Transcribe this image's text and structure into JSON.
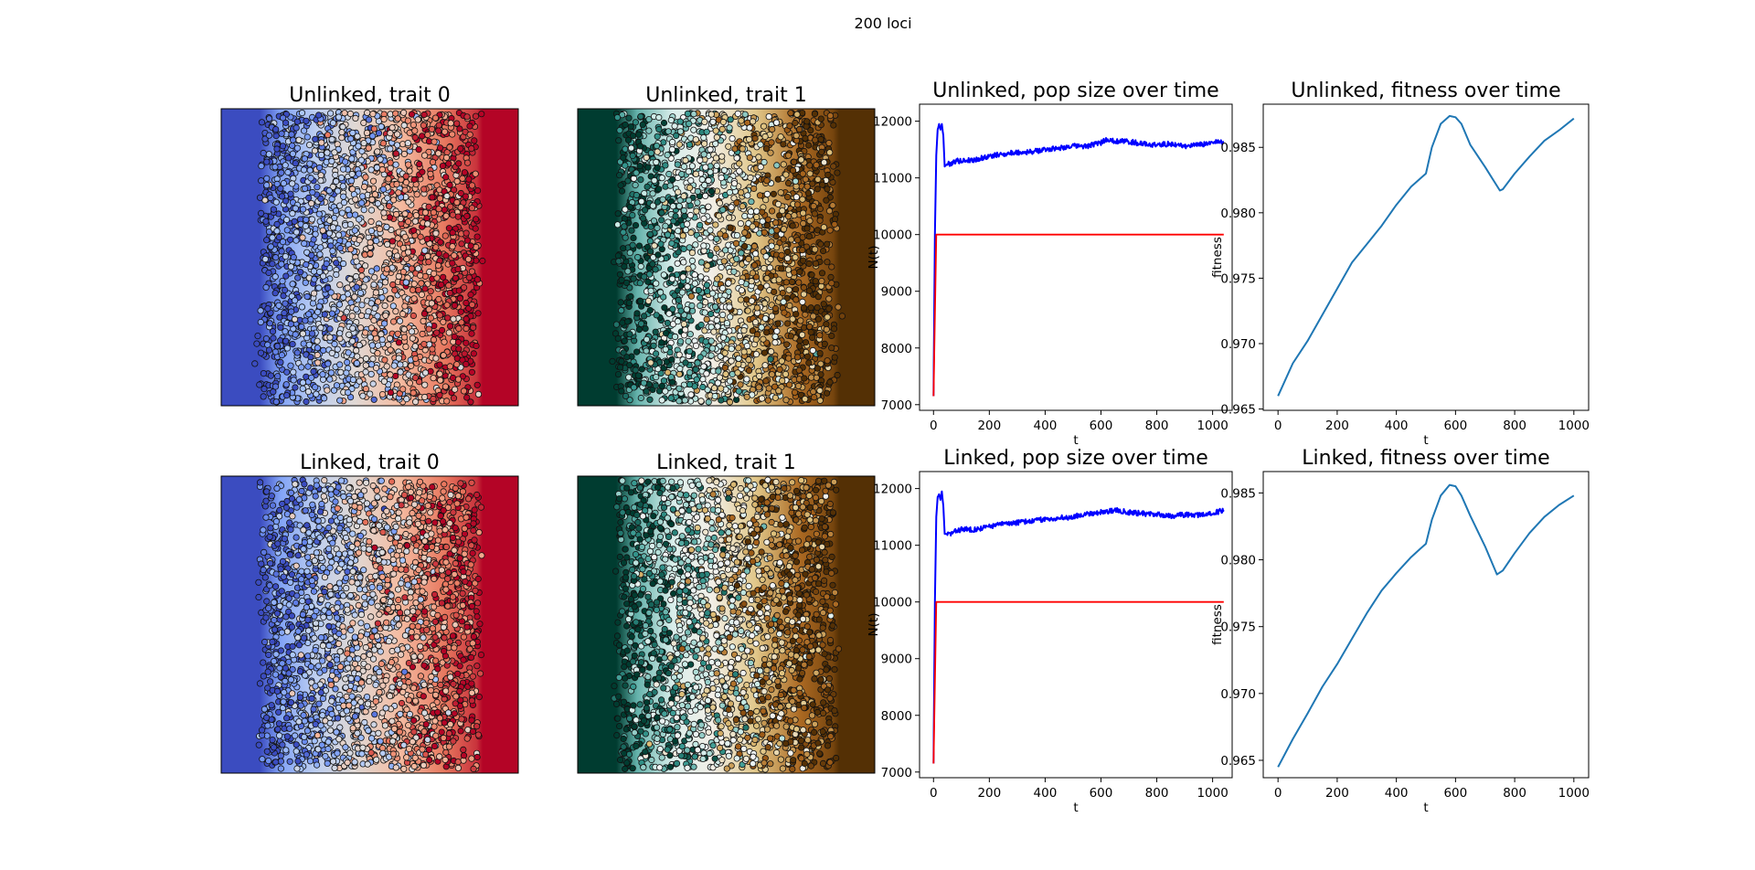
{
  "figure": {
    "suptitle": "200 loci"
  },
  "colors": {
    "coolwarm": [
      "#3b4cc0",
      "#6f92f3",
      "#aac7fd",
      "#dddcdc",
      "#f7b89c",
      "#e7745b",
      "#b40426"
    ],
    "brbg": [
      "#003c30",
      "#35978f",
      "#c7eae5",
      "#f5f5f5",
      "#dfc27d",
      "#a6611a",
      "#543005"
    ],
    "pop_line": "#0000ff",
    "capacity_line": "#ff0000",
    "fitness_line": "#1f77b4"
  },
  "chart_data": [
    {
      "type": "scatter",
      "title": "Unlinked, trait 0",
      "colormap": "coolwarm",
      "note": "individuals over spatial environmental gradient; axes hidden",
      "gradient_stops": [
        [
          0,
          0
        ],
        [
          0.13,
          0
        ],
        [
          0.2,
          0.22
        ],
        [
          0.32,
          0.4
        ],
        [
          0.45,
          0.52
        ],
        [
          0.6,
          0.65
        ],
        [
          0.75,
          0.82
        ],
        [
          0.86,
          0.93
        ],
        [
          0.88,
          1
        ],
        [
          1,
          1
        ]
      ]
    },
    {
      "type": "scatter",
      "title": "Unlinked, trait 1",
      "colormap": "brbg",
      "note": "individuals over spatial environmental gradient; axes hidden",
      "gradient_stops": [
        [
          0,
          0
        ],
        [
          0.13,
          0
        ],
        [
          0.2,
          0.22
        ],
        [
          0.32,
          0.4
        ],
        [
          0.45,
          0.52
        ],
        [
          0.6,
          0.65
        ],
        [
          0.75,
          0.82
        ],
        [
          0.86,
          0.93
        ],
        [
          0.88,
          1
        ],
        [
          1,
          1
        ]
      ]
    },
    {
      "type": "line",
      "title": "Unlinked, pop size over time",
      "xlabel": "t",
      "ylabel": "N(t)",
      "xlim": [
        -50,
        1070
      ],
      "ylim": [
        6900,
        12300
      ],
      "xticks": [
        0,
        200,
        400,
        600,
        800,
        1000
      ],
      "yticks": [
        7000,
        8000,
        9000,
        10000,
        11000,
        12000
      ],
      "series": [
        {
          "role": "population",
          "x": [
            0,
            5,
            10,
            15,
            20,
            25,
            30,
            35,
            40,
            50,
            60,
            80,
            100,
            150,
            200,
            250,
            300,
            350,
            400,
            450,
            500,
            550,
            600,
            620,
            650,
            700,
            750,
            800,
            850,
            900,
            950,
            1000,
            1040
          ],
          "y": [
            7150,
            10000,
            11400,
            11850,
            11950,
            11850,
            11950,
            11750,
            11200,
            11250,
            11250,
            11300,
            11300,
            11320,
            11380,
            11420,
            11450,
            11460,
            11500,
            11530,
            11560,
            11560,
            11620,
            11680,
            11650,
            11640,
            11600,
            11580,
            11600,
            11560,
            11580,
            11620,
            11640
          ]
        },
        {
          "role": "capacity",
          "x": [
            0,
            10,
            1040
          ],
          "y": [
            7150,
            10000,
            10000
          ]
        }
      ]
    },
    {
      "type": "line",
      "title": "Unlinked, fitness over time",
      "xlabel": "t",
      "ylabel": "fitness",
      "xlim": [
        -50,
        1050
      ],
      "ylim": [
        0.9649,
        0.9883
      ],
      "xticks": [
        0,
        200,
        400,
        600,
        800,
        1000
      ],
      "yticks": [
        0.965,
        0.97,
        0.975,
        0.98,
        0.985
      ],
      "yformat": "3",
      "series": [
        {
          "role": "fitness",
          "x": [
            0,
            50,
            100,
            150,
            200,
            250,
            300,
            350,
            400,
            450,
            480,
            500,
            520,
            550,
            580,
            600,
            620,
            650,
            700,
            750,
            760,
            800,
            850,
            900,
            950,
            1000
          ],
          "y": [
            0.966,
            0.9685,
            0.9702,
            0.9722,
            0.9742,
            0.9762,
            0.9776,
            0.979,
            0.9806,
            0.982,
            0.9826,
            0.983,
            0.985,
            0.9868,
            0.9874,
            0.9873,
            0.9868,
            0.9852,
            0.9835,
            0.9817,
            0.9818,
            0.983,
            0.9843,
            0.9855,
            0.9863,
            0.9872
          ]
        }
      ]
    },
    {
      "type": "scatter",
      "title": "Linked, trait 0",
      "colormap": "coolwarm",
      "note": "individuals over spatial environmental gradient; axes hidden",
      "gradient_stops": [
        [
          0,
          0
        ],
        [
          0.13,
          0
        ],
        [
          0.2,
          0.22
        ],
        [
          0.32,
          0.4
        ],
        [
          0.45,
          0.52
        ],
        [
          0.6,
          0.65
        ],
        [
          0.75,
          0.82
        ],
        [
          0.86,
          0.93
        ],
        [
          0.88,
          1
        ],
        [
          1,
          1
        ]
      ]
    },
    {
      "type": "scatter",
      "title": "Linked, trait 1",
      "colormap": "brbg",
      "note": "individuals over spatial environmental gradient; axes hidden",
      "gradient_stops": [
        [
          0,
          0
        ],
        [
          0.13,
          0
        ],
        [
          0.2,
          0.22
        ],
        [
          0.32,
          0.4
        ],
        [
          0.45,
          0.52
        ],
        [
          0.6,
          0.65
        ],
        [
          0.75,
          0.82
        ],
        [
          0.86,
          0.93
        ],
        [
          0.88,
          1
        ],
        [
          1,
          1
        ]
      ]
    },
    {
      "type": "line",
      "title": "Linked, pop size over time",
      "xlabel": "t",
      "ylabel": "N(t)",
      "xlim": [
        -50,
        1070
      ],
      "ylim": [
        6900,
        12300
      ],
      "xticks": [
        0,
        200,
        400,
        600,
        800,
        1000
      ],
      "yticks": [
        7000,
        8000,
        9000,
        10000,
        11000,
        12000
      ],
      "series": [
        {
          "role": "population",
          "x": [
            0,
            5,
            10,
            15,
            20,
            25,
            30,
            35,
            40,
            50,
            60,
            80,
            100,
            150,
            200,
            250,
            300,
            350,
            400,
            450,
            500,
            550,
            600,
            650,
            700,
            750,
            800,
            850,
            900,
            950,
            1000,
            1040
          ],
          "y": [
            7150,
            10000,
            11500,
            11850,
            11900,
            11800,
            11950,
            11700,
            11200,
            11200,
            11200,
            11250,
            11280,
            11280,
            11330,
            11380,
            11400,
            11430,
            11460,
            11480,
            11500,
            11560,
            11580,
            11620,
            11580,
            11560,
            11540,
            11520,
            11540,
            11530,
            11560,
            11620
          ]
        },
        {
          "role": "capacity",
          "x": [
            0,
            10,
            1040
          ],
          "y": [
            7150,
            10000,
            10000
          ]
        }
      ]
    },
    {
      "type": "line",
      "title": "Linked, fitness over time",
      "xlabel": "t",
      "ylabel": "fitness",
      "xlim": [
        -50,
        1050
      ],
      "ylim": [
        0.9637,
        0.9866
      ],
      "xticks": [
        0,
        200,
        400,
        600,
        800,
        1000
      ],
      "yticks": [
        0.965,
        0.97,
        0.975,
        0.98,
        0.985
      ],
      "yformat": "3",
      "series": [
        {
          "role": "fitness",
          "x": [
            0,
            50,
            100,
            150,
            200,
            250,
            300,
            350,
            400,
            450,
            480,
            500,
            520,
            550,
            580,
            600,
            620,
            650,
            700,
            740,
            760,
            800,
            850,
            900,
            950,
            1000
          ],
          "y": [
            0.9645,
            0.9666,
            0.9685,
            0.9705,
            0.9722,
            0.9741,
            0.976,
            0.9777,
            0.979,
            0.9802,
            0.9808,
            0.9812,
            0.983,
            0.9848,
            0.9856,
            0.9855,
            0.9848,
            0.9833,
            0.981,
            0.9789,
            0.9792,
            0.9805,
            0.982,
            0.9832,
            0.9841,
            0.9848
          ]
        }
      ]
    }
  ]
}
